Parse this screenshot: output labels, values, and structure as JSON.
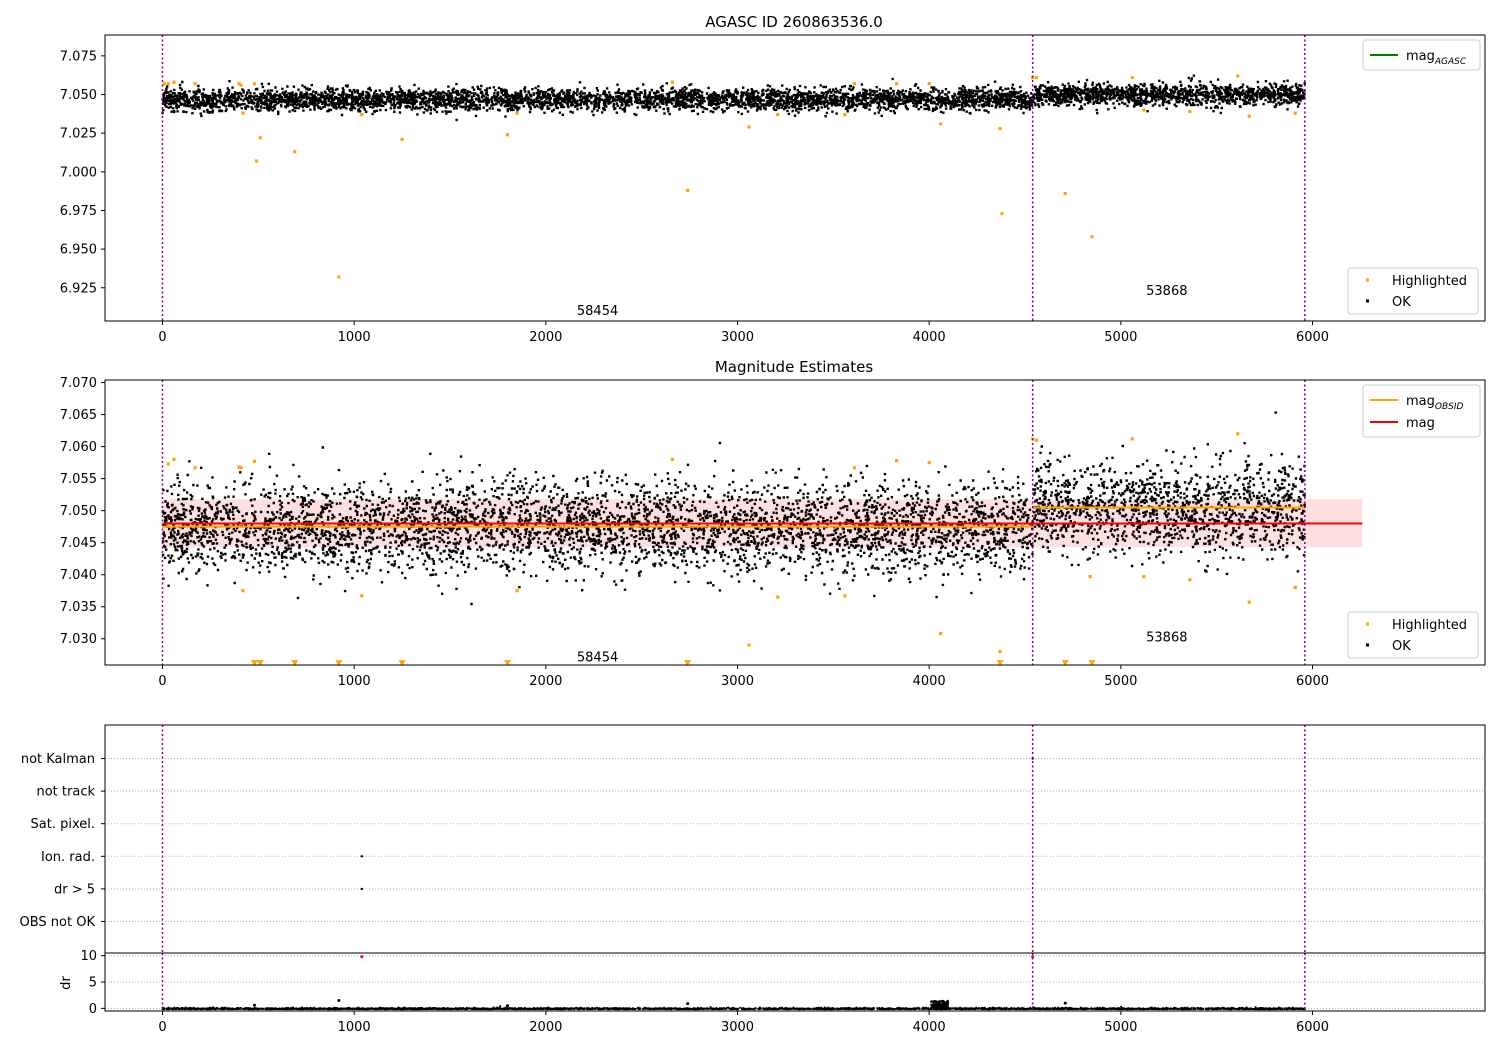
{
  "chart_data": [
    {
      "type": "scatter",
      "title": "AGASC ID 260863536.0",
      "xlabel": "",
      "ylabel": "",
      "xlim": [
        -300,
        6900
      ],
      "ylim": [
        6.9035,
        7.0885
      ],
      "x_ticks": [
        "0",
        "1000",
        "2000",
        "3000",
        "4000",
        "5000",
        "6000"
      ],
      "y_ticks": [
        "6.925",
        "6.950",
        "6.975",
        "7.000",
        "7.025",
        "7.050",
        "7.075"
      ],
      "obsid_boundaries": [
        0,
        4540,
        5960
      ],
      "annotations": [
        {
          "text": "58454",
          "x": 2270,
          "y": 6.91
        },
        {
          "text": "53868",
          "x": 5240,
          "y": 6.923
        }
      ],
      "legends": {
        "upper": [
          {
            "label": "mag",
            "subscript": "AGASC",
            "color": "#008000"
          }
        ],
        "lower": [
          {
            "label": "Highlighted",
            "color": "#ffa500"
          },
          {
            "label": "OK",
            "color": "#000000"
          }
        ]
      },
      "segments": [
        {
          "x0": 0,
          "x1": 4540,
          "center": 7.0475,
          "spread": 0.0035
        },
        {
          "x0": 4540,
          "x1": 5960,
          "center": 7.0505,
          "spread": 0.0035
        }
      ],
      "series": [
        {
          "name": "Highlighted",
          "color": "#ffa500",
          "x": [
            10,
            30,
            60,
            170,
            400,
            410,
            420,
            480,
            490,
            510,
            690,
            920,
            1040,
            1250,
            1800,
            1850,
            2660,
            2740,
            3060,
            3210,
            3560,
            3610,
            3830,
            4000,
            4060,
            4370,
            4380,
            4540,
            4560,
            4710,
            4850,
            5060,
            5120,
            5360,
            5610,
            5670,
            5910
          ],
          "y": [
            7.057,
            7.057,
            7.058,
            7.057,
            7.057,
            7.056,
            7.038,
            7.057,
            7.007,
            7.022,
            7.013,
            6.932,
            7.037,
            7.021,
            7.024,
            7.038,
            7.058,
            6.988,
            7.029,
            7.037,
            7.037,
            7.057,
            7.057,
            7.057,
            7.031,
            7.028,
            6.973,
            7.061,
            7.061,
            6.986,
            6.958,
            7.061,
            7.04,
            7.039,
            7.062,
            7.036,
            7.038
          ]
        }
      ]
    },
    {
      "type": "scatter",
      "title": "Magnitude Estimates",
      "xlabel": "",
      "ylabel": "",
      "xlim": [
        -300,
        6900
      ],
      "ylim": [
        7.0259,
        7.0704
      ],
      "x_ticks": [
        "0",
        "1000",
        "2000",
        "3000",
        "4000",
        "5000",
        "6000"
      ],
      "y_ticks": [
        "7.030",
        "7.035",
        "7.040",
        "7.045",
        "7.050",
        "7.055",
        "7.060",
        "7.065",
        "7.070"
      ],
      "obsid_boundaries": [
        0,
        4540,
        5960
      ],
      "annotations": [
        {
          "text": "58454",
          "x": 2270,
          "y": 7.0271
        },
        {
          "text": "53868",
          "x": 5240,
          "y": 7.0302
        }
      ],
      "legends": {
        "upper": [
          {
            "label": "mag",
            "subscript": "OBSID",
            "color": "#ffa500"
          },
          {
            "label": "mag",
            "subscript": "",
            "color": "#ff0000"
          }
        ],
        "lower": [
          {
            "label": "Highlighted",
            "color": "#ffa500"
          },
          {
            "label": "OK",
            "color": "#000000"
          }
        ]
      },
      "mag_line": {
        "value": 7.048,
        "band": [
          7.0443,
          7.0518
        ],
        "x0": 0,
        "x1": 6260,
        "color": "#ff0000"
      },
      "obsid_lines": [
        {
          "x0": 0,
          "x1": 4540,
          "value": 7.0475,
          "color": "#ffa500"
        },
        {
          "x0": 4540,
          "x1": 5960,
          "value": 7.0505,
          "color": "#ffa500"
        }
      ],
      "segments": [
        {
          "x0": 0,
          "x1": 4540,
          "center": 7.0475,
          "spread": 0.0035
        },
        {
          "x0": 4540,
          "x1": 5960,
          "center": 7.0505,
          "spread": 0.0035
        }
      ],
      "series": [
        {
          "name": "Highlighted",
          "color": "#ffa500",
          "x": [
            30,
            60,
            170,
            400,
            410,
            420,
            480,
            1040,
            1850,
            2660,
            3060,
            3210,
            3560,
            3610,
            3830,
            4000,
            4060,
            4370,
            4540,
            4560,
            4840,
            5060,
            5120,
            5360,
            5610,
            5670,
            5910
          ],
          "y": [
            7.0573,
            7.058,
            7.0567,
            7.0568,
            7.0567,
            7.0375,
            7.0577,
            7.0367,
            7.0375,
            7.058,
            7.029,
            7.0365,
            7.0367,
            7.0567,
            7.0578,
            7.0575,
            7.0308,
            7.028,
            7.0612,
            7.061,
            7.0397,
            7.0612,
            7.0397,
            7.0392,
            7.062,
            7.0357,
            7.038
          ]
        },
        {
          "name": "off-scale",
          "color": "#ffa500",
          "x": [
            480,
            510,
            690,
            920,
            1250,
            1800,
            2740,
            4370,
            4710,
            4850
          ],
          "y": [
            7.0262,
            7.0262,
            7.0262,
            7.0262,
            7.0262,
            7.0262,
            7.0262,
            7.0262,
            7.0262,
            7.0262
          ]
        }
      ]
    },
    {
      "type": "scatter",
      "title": "",
      "xlabel": "",
      "ylabel": "",
      "xlim": [
        -300,
        6900
      ],
      "categories": [
        "OBS not OK",
        "dr > 5",
        "Ion. rad.",
        "Sat. pixel.",
        "not track",
        "not Kalman"
      ],
      "obsid_boundaries": [
        0,
        4540,
        5960
      ],
      "flag_points": [
        {
          "category": "Ion. rad.",
          "x": 1040
        },
        {
          "category": "dr > 5",
          "x": 1040
        },
        {
          "category": "not Kalman",
          "x": 4540
        }
      ]
    },
    {
      "type": "scatter",
      "title": "",
      "xlabel": "",
      "ylabel": "dr",
      "xlim": [
        -300,
        6900
      ],
      "ylim": [
        -0.5,
        10.5
      ],
      "y_ticks": [
        "0",
        "5",
        "10"
      ],
      "x_ticks": [
        "0",
        "1000",
        "2000",
        "3000",
        "4000",
        "5000",
        "6000"
      ],
      "obsid_boundaries": [
        0,
        4540,
        5960
      ],
      "outliers": [
        {
          "x": 1040,
          "y": 9.8,
          "color": "#ff0000"
        },
        {
          "x": 4540,
          "y": 9.8,
          "color": "#ff0000"
        },
        {
          "x": 920,
          "y": 1.5,
          "color": "#000000"
        },
        {
          "x": 2740,
          "y": 0.9,
          "color": "#000000"
        },
        {
          "x": 4710,
          "y": 1.0,
          "color": "#000000"
        },
        {
          "x": 480,
          "y": 0.6,
          "color": "#000000"
        },
        {
          "x": 1800,
          "y": 0.5,
          "color": "#000000"
        }
      ],
      "cluster": {
        "x0": 4010,
        "x1": 4100,
        "y0": 0.2,
        "y1": 1.6
      }
    }
  ]
}
